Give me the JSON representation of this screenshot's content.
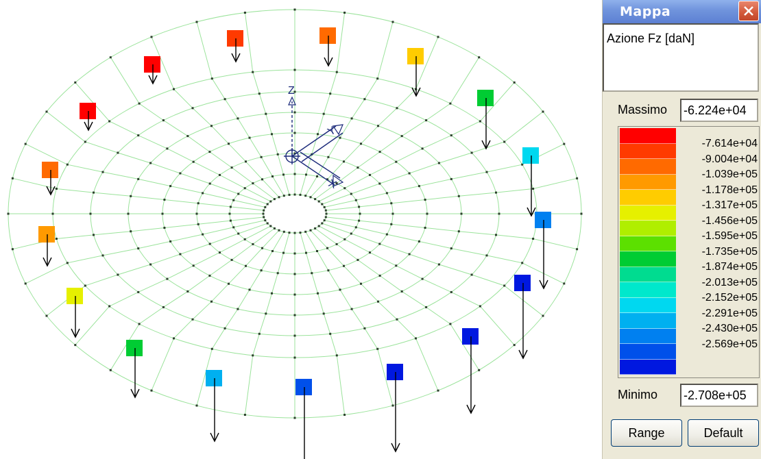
{
  "viewport": {
    "axis_z_label": "Z",
    "axis_x_label": "X",
    "axis_y_label": "Y"
  },
  "window": {
    "title": "Mappa",
    "close_icon": "close-icon"
  },
  "legend": {
    "caption": "Azione Fz [daN]",
    "max_label": "Massimo",
    "max_value": "-6.224e+04",
    "min_label": "Minimo",
    "min_value": "-2.708e+05",
    "colors": [
      "#ff0000",
      "#ff3a00",
      "#ff6a00",
      "#ff9a00",
      "#ffcc00",
      "#e6f000",
      "#b0ee00",
      "#5ce000",
      "#00cc33",
      "#00dc90",
      "#00e8cc",
      "#00d8f0",
      "#00b0f0",
      "#0080f0",
      "#0050ea",
      "#0018e0"
    ],
    "ticks": [
      "-7.614e+04",
      "-9.004e+04",
      "-1.039e+05",
      "-1.178e+05",
      "-1.317e+05",
      "-1.456e+05",
      "-1.595e+05",
      "-1.735e+05",
      "-1.874e+05",
      "-2.013e+05",
      "-2.152e+05",
      "-2.291e+05",
      "-2.430e+05",
      "-2.569e+05"
    ]
  },
  "buttons": {
    "range": "Range",
    "default": "Default"
  }
}
